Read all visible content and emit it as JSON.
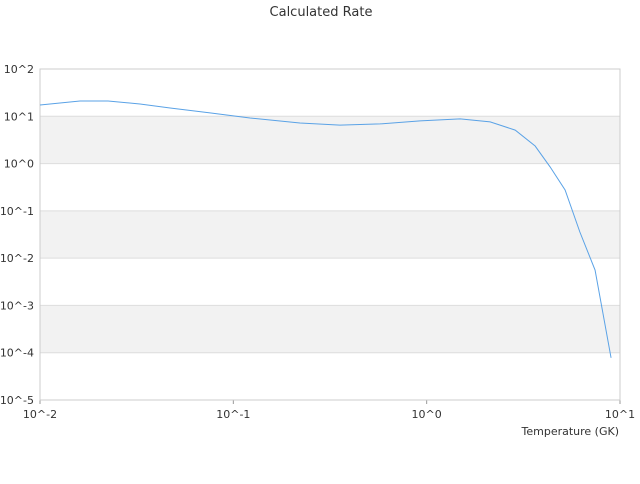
{
  "chart_data": {
    "type": "line",
    "title": "Calculated Rate",
    "x_label": "Temperature (GK)",
    "x_log": true,
    "y_log": true,
    "grid": true,
    "xlim": [
      0.01,
      10
    ],
    "ylim": [
      1e-05,
      100
    ],
    "xticks": [
      {
        "value": 0.01,
        "label": "10^-2"
      },
      {
        "value": 0.1,
        "label": "10^-1"
      },
      {
        "value": 1,
        "label": "10^0"
      },
      {
        "value": 10,
        "label": "10^1"
      }
    ],
    "yticks": [
      {
        "value": 1e-05,
        "label": "10^-5"
      },
      {
        "value": 0.0001,
        "label": "10^-4"
      },
      {
        "value": 0.001,
        "label": "10^-3"
      },
      {
        "value": 0.01,
        "label": "10^-2"
      },
      {
        "value": 0.1,
        "label": "10^-1"
      },
      {
        "value": 1,
        "label": "10^0"
      },
      {
        "value": 10,
        "label": "10^1"
      },
      {
        "value": 100,
        "label": "10^2"
      }
    ],
    "x": [
      0.01,
      0.0161,
      0.0225,
      0.0329,
      0.0471,
      0.0757,
      0.122,
      0.221,
      0.356,
      0.574,
      0.925,
      1.49,
      2.13,
      2.87,
      3.64,
      4.35,
      5.2,
      6.2,
      7.43,
      8.99
    ],
    "series": [
      {
        "color": "#5aa2e6",
        "values": [
          17.3,
          21,
          21,
          18.2,
          15,
          11.8,
          9.2,
          7.2,
          6.5,
          6.9,
          8.0,
          8.8,
          7.6,
          5.1,
          2.35,
          0.85,
          0.276,
          0.0357,
          0.0056,
          7.8e-05
        ]
      }
    ]
  }
}
